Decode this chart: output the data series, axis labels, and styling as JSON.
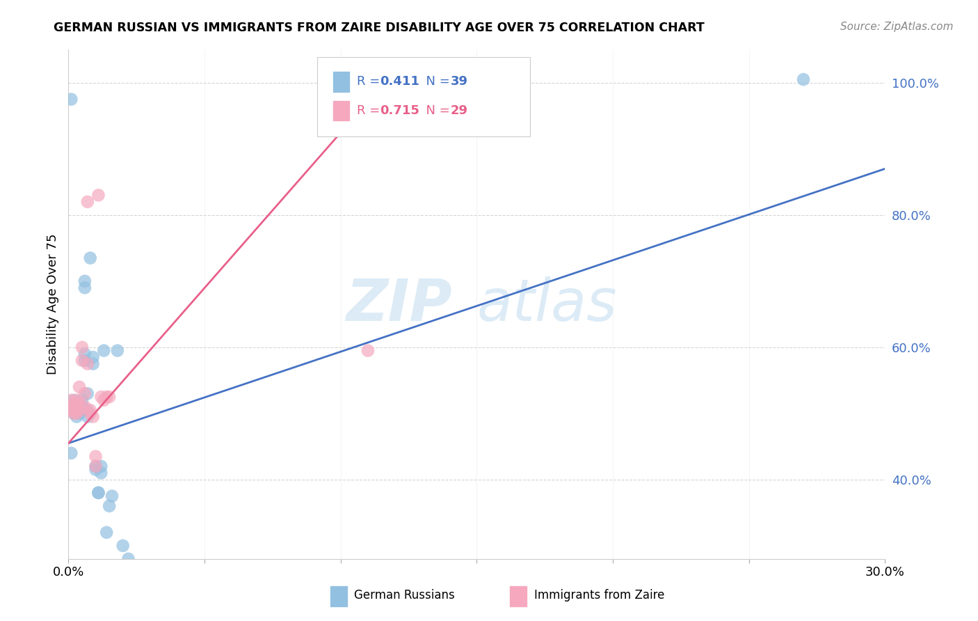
{
  "title": "GERMAN RUSSIAN VS IMMIGRANTS FROM ZAIRE DISABILITY AGE OVER 75 CORRELATION CHART",
  "source": "Source: ZipAtlas.com",
  "ylabel": "Disability Age Over 75",
  "xlim": [
    0.0,
    0.3
  ],
  "ylim": [
    0.28,
    1.05
  ],
  "xticks": [
    0.0,
    0.05,
    0.1,
    0.15,
    0.2,
    0.25,
    0.3
  ],
  "xtick_labels": [
    "0.0%",
    "",
    "",
    "",
    "",
    "",
    "30.0%"
  ],
  "yticks": [
    0.4,
    0.6,
    0.8,
    1.0
  ],
  "ytick_labels": [
    "40.0%",
    "60.0%",
    "80.0%",
    "100.0%"
  ],
  "blue_R": 0.411,
  "blue_N": 39,
  "pink_R": 0.715,
  "pink_N": 29,
  "blue_color": "#92c0e0",
  "pink_color": "#f5a8be",
  "blue_line_color": "#4472c4",
  "pink_line_color": "#e8608a",
  "watermark_zip": "ZIP",
  "watermark_atlas": "atlas",
  "blue_scatter_x": [
    0.001,
    0.001,
    0.002,
    0.002,
    0.003,
    0.003,
    0.003,
    0.004,
    0.004,
    0.004,
    0.004,
    0.005,
    0.005,
    0.005,
    0.006,
    0.006,
    0.006,
    0.006,
    0.007,
    0.007,
    0.007,
    0.008,
    0.009,
    0.009,
    0.01,
    0.01,
    0.011,
    0.011,
    0.012,
    0.012,
    0.013,
    0.014,
    0.015,
    0.016,
    0.018,
    0.02,
    0.022,
    0.27,
    0.001
  ],
  "blue_scatter_y": [
    0.44,
    0.975,
    0.5,
    0.52,
    0.505,
    0.495,
    0.515,
    0.5,
    0.505,
    0.5,
    0.51,
    0.52,
    0.51,
    0.505,
    0.59,
    0.58,
    0.69,
    0.7,
    0.505,
    0.495,
    0.53,
    0.735,
    0.585,
    0.575,
    0.42,
    0.415,
    0.38,
    0.38,
    0.42,
    0.41,
    0.595,
    0.32,
    0.36,
    0.375,
    0.595,
    0.3,
    0.28,
    1.005,
    0.51
  ],
  "pink_scatter_x": [
    0.001,
    0.001,
    0.002,
    0.002,
    0.002,
    0.003,
    0.003,
    0.003,
    0.004,
    0.004,
    0.004,
    0.005,
    0.005,
    0.006,
    0.006,
    0.007,
    0.007,
    0.008,
    0.008,
    0.009,
    0.01,
    0.01,
    0.011,
    0.012,
    0.013,
    0.014,
    0.015,
    0.1,
    0.11
  ],
  "pink_scatter_y": [
    0.505,
    0.52,
    0.505,
    0.5,
    0.515,
    0.52,
    0.515,
    0.5,
    0.54,
    0.515,
    0.505,
    0.6,
    0.58,
    0.51,
    0.53,
    0.82,
    0.575,
    0.505,
    0.5,
    0.495,
    0.42,
    0.435,
    0.83,
    0.525,
    0.52,
    0.525,
    0.525,
    0.995,
    0.595
  ],
  "blue_trend_x": [
    0.0,
    0.3
  ],
  "blue_trend_y": [
    0.455,
    0.87
  ],
  "pink_trend_x": [
    0.0,
    0.115
  ],
  "pink_trend_y": [
    0.455,
    0.995
  ],
  "legend_blue_label": "R = 0.411   N = 39",
  "legend_pink_label": "R = 0.715   N = 29",
  "bottom_legend_blue": "German Russians",
  "bottom_legend_pink": "Immigrants from Zaire"
}
